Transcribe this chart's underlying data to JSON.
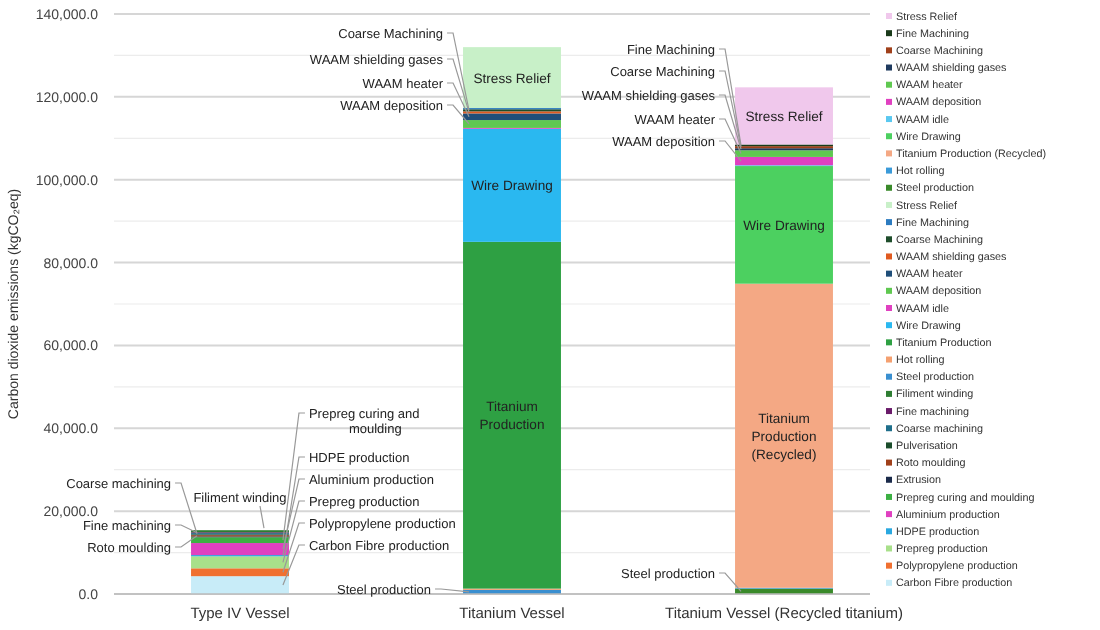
{
  "chart_data": {
    "type": "bar",
    "stacked": true,
    "ylabel": "Carbon dioxide emissions (kgCO₂eq)",
    "categories": [
      "Type IV Vessel",
      "Titanium Vessel",
      "Titanium Vessel (Recycled titanium)"
    ],
    "ylim": [
      0,
      140000
    ],
    "yticks": [
      {
        "value": 0,
        "label": "0.0"
      },
      {
        "value": 10000,
        "label": null
      },
      {
        "value": 20000,
        "label": "20,000.0"
      },
      {
        "value": 30000,
        "label": null
      },
      {
        "value": 40000,
        "label": "40,000.0"
      },
      {
        "value": 50000,
        "label": null
      },
      {
        "value": 60000,
        "label": "60,000.0"
      },
      {
        "value": 70000,
        "label": null
      },
      {
        "value": 80000,
        "label": "80,000.0"
      },
      {
        "value": 90000,
        "label": null
      },
      {
        "value": 100000,
        "label": "100,000.0"
      },
      {
        "value": 110000,
        "label": null
      },
      {
        "value": 120000,
        "label": "120,000.0"
      },
      {
        "value": 130000,
        "label": null
      },
      {
        "value": 140000,
        "label": "140,000.0"
      }
    ],
    "grid": "y",
    "legend": "right",
    "series": [
      {
        "name": "Carbon Fibre production",
        "color": "#c8ecf8",
        "values": [
          4300,
          null,
          null
        ]
      },
      {
        "name": "Polypropylene production",
        "color": "#f07030",
        "values": [
          1900,
          null,
          null
        ]
      },
      {
        "name": "Prepreg production",
        "color": "#a8e08a",
        "values": [
          2900,
          null,
          null
        ]
      },
      {
        "name": "HDPE production",
        "color": "#29a8e0",
        "values": [
          300,
          null,
          null
        ]
      },
      {
        "name": "Aluminium production",
        "color": "#e040c0",
        "values": [
          2900,
          null,
          null
        ]
      },
      {
        "name": "Prepreg curing and moulding",
        "color": "#3cb043",
        "values": [
          1400,
          null,
          null
        ]
      },
      {
        "name": "Extrusion",
        "color": "#1a2a4a",
        "values": [
          200,
          null,
          null
        ]
      },
      {
        "name": "Roto moulding",
        "color": "#a0401a",
        "values": [
          300,
          null,
          null
        ]
      },
      {
        "name": "Pulverisation",
        "color": "#1b4d2b",
        "values": [
          200,
          null,
          null
        ]
      },
      {
        "name": "Coarse machining",
        "color": "#1f6f8b",
        "values": [
          300,
          null,
          null
        ]
      },
      {
        "name": "Fine machining",
        "color": "#6a1b6a",
        "values": [
          200,
          null,
          null
        ]
      },
      {
        "name": "Filiment winding",
        "color": "#2e7d32",
        "values": [
          500,
          null,
          null
        ]
      },
      {
        "name": "Steel production",
        "color": "#3a8fd0",
        "values": [
          null,
          1000,
          null
        ]
      },
      {
        "name": "Hot rolling",
        "color": "#f4a070",
        "values": [
          null,
          300,
          null
        ]
      },
      {
        "name": "Titanium Production",
        "color": "#2ea043",
        "values": [
          null,
          83700,
          null
        ]
      },
      {
        "name": "Wire Drawing",
        "color": "#2ab8f0",
        "values": [
          null,
          27300,
          null
        ]
      },
      {
        "name": "WAAM idle",
        "color": "#e040c0",
        "values": [
          null,
          200,
          null
        ]
      },
      {
        "name": "WAAM deposition",
        "color": "#5fc850",
        "values": [
          null,
          1900,
          null
        ]
      },
      {
        "name": "WAAM heater",
        "color": "#1f4e79",
        "values": [
          null,
          1600,
          null
        ]
      },
      {
        "name": "WAAM shielding gases",
        "color": "#e05a20",
        "values": [
          null,
          500,
          null
        ]
      },
      {
        "name": "Coarse Machining",
        "color": "#1e4d2b",
        "values": [
          null,
          500,
          null
        ]
      },
      {
        "name": "Fine Machining",
        "color": "#2c7bc0",
        "values": [
          null,
          300,
          null
        ]
      },
      {
        "name": "Stress Relief",
        "color": "#c8f0c8",
        "values": [
          null,
          14700,
          null
        ]
      },
      {
        "name": "Steel production",
        "color": "#3a8a2a",
        "values": [
          null,
          null,
          1300
        ]
      },
      {
        "name": "Hot rolling",
        "color": "#3a9ad9",
        "values": [
          null,
          null,
          200
        ]
      },
      {
        "name": "Titanium Production (Recycled)",
        "color": "#f4a884",
        "values": [
          null,
          null,
          73400
        ]
      },
      {
        "name": "Wire Drawing",
        "color": "#4cd060",
        "values": [
          null,
          null,
          28400
        ]
      },
      {
        "name": "WAAM idle",
        "color": "#5ac8f0",
        "values": [
          null,
          null,
          200
        ]
      },
      {
        "name": "WAAM deposition",
        "color": "#e040c0",
        "values": [
          null,
          null,
          2000
        ]
      },
      {
        "name": "WAAM heater",
        "color": "#5fc850",
        "values": [
          null,
          null,
          1600
        ]
      },
      {
        "name": "WAAM shielding gases",
        "color": "#1f3a5f",
        "values": [
          null,
          null,
          500
        ]
      },
      {
        "name": "Coarse Machining",
        "color": "#a0401a",
        "values": [
          null,
          null,
          500
        ]
      },
      {
        "name": "Fine Machining",
        "color": "#1a3a1a",
        "values": [
          null,
          null,
          400
        ]
      },
      {
        "name": "Stress Relief",
        "color": "#f0c8ec",
        "values": [
          null,
          null,
          13800
        ]
      }
    ]
  }
}
